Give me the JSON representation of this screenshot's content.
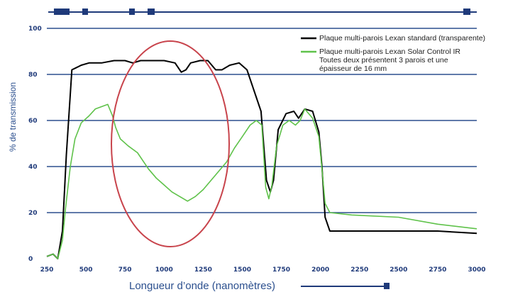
{
  "chart_data": {
    "type": "line",
    "xlabel": "Longueur d’onde (nanomètres)",
    "ylabel": "% de transmission",
    "x_tick_labels": [
      "250",
      "500",
      "750",
      "1000",
      "1250",
      "1500",
      "1750",
      "2000",
      "2250",
      "2500",
      "2750",
      "3000"
    ],
    "y_tick_labels": [
      "0",
      "20",
      "40",
      "60",
      "80",
      "100"
    ],
    "xlim": [
      250,
      3000
    ],
    "ylim": [
      0,
      100
    ],
    "grid": "horizontal",
    "legend_position": "top-right",
    "legend_note": [
      "Toutes deux présentent 3 parois et une",
      "épaisseur de 16 mm"
    ],
    "highlight": "red ellipse over the 700–1600 nm region",
    "colors": {
      "standard": "#000000",
      "solar_control": "#5fc24a",
      "grid": "#2b4f8e",
      "highlight": "#c8444c",
      "axis_text": "#1f3a7a"
    },
    "series": [
      {
        "name": "Plaque multi-parois Lexan standard (transparente)",
        "color": "#000000",
        "points": [
          [
            250,
            1
          ],
          [
            290,
            2
          ],
          [
            320,
            0
          ],
          [
            350,
            12
          ],
          [
            375,
            45
          ],
          [
            410,
            82
          ],
          [
            440,
            83
          ],
          [
            470,
            84
          ],
          [
            520,
            85
          ],
          [
            600,
            85
          ],
          [
            680,
            86
          ],
          [
            750,
            86
          ],
          [
            800,
            85
          ],
          [
            850,
            86
          ],
          [
            900,
            86
          ],
          [
            950,
            86
          ],
          [
            1000,
            86
          ],
          [
            1070,
            85
          ],
          [
            1110,
            81
          ],
          [
            1140,
            82
          ],
          [
            1170,
            85
          ],
          [
            1230,
            86
          ],
          [
            1280,
            86
          ],
          [
            1330,
            82
          ],
          [
            1370,
            82
          ],
          [
            1420,
            84
          ],
          [
            1480,
            85
          ],
          [
            1530,
            82
          ],
          [
            1580,
            72
          ],
          [
            1620,
            64
          ],
          [
            1655,
            34
          ],
          [
            1680,
            29
          ],
          [
            1700,
            34
          ],
          [
            1730,
            56
          ],
          [
            1780,
            63
          ],
          [
            1830,
            64
          ],
          [
            1860,
            61
          ],
          [
            1900,
            65
          ],
          [
            1950,
            64
          ],
          [
            1990,
            55
          ],
          [
            2010,
            40
          ],
          [
            2030,
            18
          ],
          [
            2060,
            12
          ],
          [
            2200,
            12
          ],
          [
            2500,
            12
          ],
          [
            2750,
            12
          ],
          [
            3000,
            11
          ]
        ]
      },
      {
        "name": "Plaque multi-parois Lexan Solar Control IR",
        "color": "#5fc24a",
        "points": [
          [
            250,
            1
          ],
          [
            290,
            2
          ],
          [
            320,
            0
          ],
          [
            350,
            8
          ],
          [
            370,
            22
          ],
          [
            400,
            40
          ],
          [
            430,
            52
          ],
          [
            470,
            59
          ],
          [
            520,
            62
          ],
          [
            560,
            65
          ],
          [
            600,
            66
          ],
          [
            640,
            67
          ],
          [
            670,
            62
          ],
          [
            690,
            57
          ],
          [
            720,
            52
          ],
          [
            770,
            49
          ],
          [
            830,
            46
          ],
          [
            900,
            39
          ],
          [
            950,
            35
          ],
          [
            1000,
            32
          ],
          [
            1050,
            29
          ],
          [
            1100,
            27
          ],
          [
            1150,
            25
          ],
          [
            1200,
            27
          ],
          [
            1250,
            30
          ],
          [
            1300,
            34
          ],
          [
            1350,
            38
          ],
          [
            1400,
            42
          ],
          [
            1450,
            48
          ],
          [
            1500,
            53
          ],
          [
            1550,
            58
          ],
          [
            1590,
            60
          ],
          [
            1625,
            58
          ],
          [
            1650,
            31
          ],
          [
            1670,
            26
          ],
          [
            1690,
            32
          ],
          [
            1720,
            49
          ],
          [
            1760,
            58
          ],
          [
            1800,
            60
          ],
          [
            1840,
            58
          ],
          [
            1870,
            60
          ],
          [
            1900,
            65
          ],
          [
            1950,
            61
          ],
          [
            1990,
            53
          ],
          [
            2010,
            39
          ],
          [
            2030,
            24
          ],
          [
            2060,
            20
          ],
          [
            2200,
            19
          ],
          [
            2500,
            18
          ],
          [
            2750,
            15
          ],
          [
            3000,
            13
          ]
        ]
      }
    ]
  }
}
